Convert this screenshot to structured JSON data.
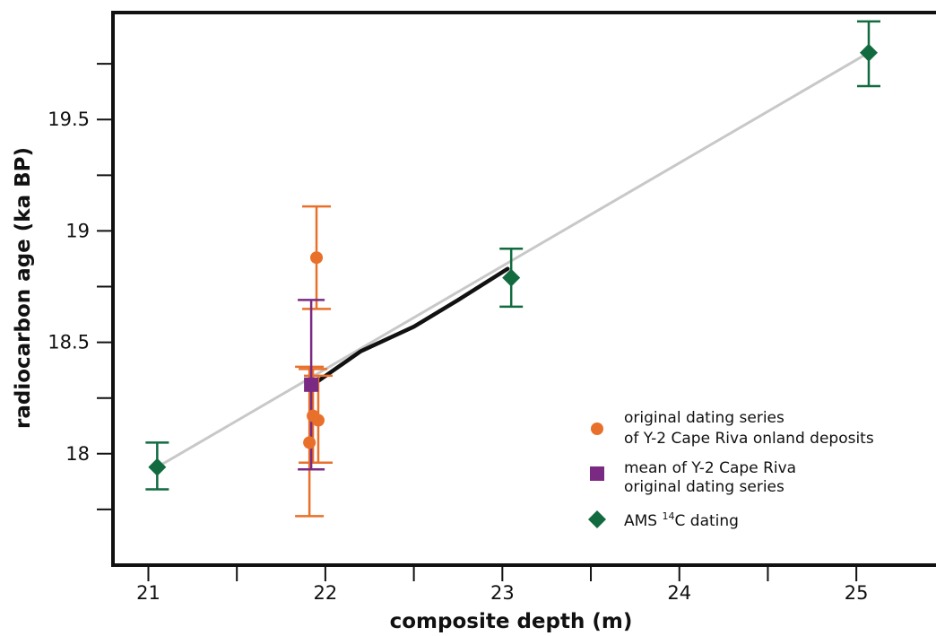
{
  "chart_data": {
    "type": "scatter",
    "title": "",
    "xlabel": "composite depth (m)",
    "ylabel": "radiocarbon age (ka BP)",
    "xlim": [
      20.8,
      25.45
    ],
    "ylim": [
      17.5,
      19.98
    ],
    "x_ticks": [
      21,
      21.5,
      22,
      22.5,
      23,
      23.5,
      24,
      24.5,
      25
    ],
    "x_tick_labels": [
      "21",
      "",
      "22",
      "",
      "23",
      "",
      "24",
      "",
      "25"
    ],
    "y_ticks": [
      17.75,
      18,
      18.25,
      18.5,
      18.75,
      19,
      19.25,
      19.5,
      19.75
    ],
    "y_tick_labels": [
      "",
      "18",
      "",
      "18.5",
      "",
      "19",
      "",
      "19.5",
      ""
    ],
    "grid": false,
    "legend_position": "lower-right",
    "colors": {
      "orange": "#e8702a",
      "purple": "#7a2a82",
      "green": "#116b3f",
      "fit_line": "#c8c8c8",
      "curve": "#111111",
      "axis": "#111111"
    },
    "fit_line": {
      "x": [
        21.05,
        25.07
      ],
      "y": [
        17.94,
        19.8
      ]
    },
    "curve": {
      "x": [
        21.93,
        22.2,
        22.5,
        22.75,
        23.03
      ],
      "y": [
        18.31,
        18.46,
        18.57,
        18.69,
        18.83
      ]
    },
    "series": [
      {
        "name": "original dating series of Y-2 Cape Riva onland deposits",
        "marker": "circle",
        "color": "#e8702a",
        "points": [
          {
            "x": 21.95,
            "y": 18.88,
            "low": 18.65,
            "high": 19.11
          },
          {
            "x": 21.93,
            "y": 18.17,
            "low": 17.96,
            "high": 18.38
          },
          {
            "x": 21.96,
            "y": 18.15,
            "low": 17.96,
            "high": 18.35
          },
          {
            "x": 21.91,
            "y": 18.05,
            "low": 17.72,
            "high": 18.39
          }
        ]
      },
      {
        "name": "mean of Y-2 Cape Riva original dating series",
        "marker": "square",
        "color": "#7a2a82",
        "points": [
          {
            "x": 21.92,
            "y": 18.31,
            "low": 17.93,
            "high": 18.69
          }
        ]
      },
      {
        "name": "AMS 14C dating",
        "marker": "diamond",
        "color": "#116b3f",
        "points": [
          {
            "x": 21.05,
            "y": 17.94,
            "low": 17.84,
            "high": 18.05
          },
          {
            "x": 23.05,
            "y": 18.79,
            "low": 18.66,
            "high": 18.92
          },
          {
            "x": 25.07,
            "y": 19.8,
            "low": 19.65,
            "high": 19.94
          }
        ]
      }
    ],
    "legend": [
      {
        "marker": "circle",
        "color": "#e8702a",
        "lines": [
          "original dating series",
          "of Y-2 Cape Riva onland deposits"
        ]
      },
      {
        "marker": "square",
        "color": "#7a2a82",
        "lines": [
          "mean of Y-2 Cape Riva",
          "original dating series"
        ]
      },
      {
        "marker": "diamond",
        "color": "#116b3f",
        "lines": [
          "AMS ",
          "C dating"
        ],
        "superscript": "14"
      }
    ]
  }
}
